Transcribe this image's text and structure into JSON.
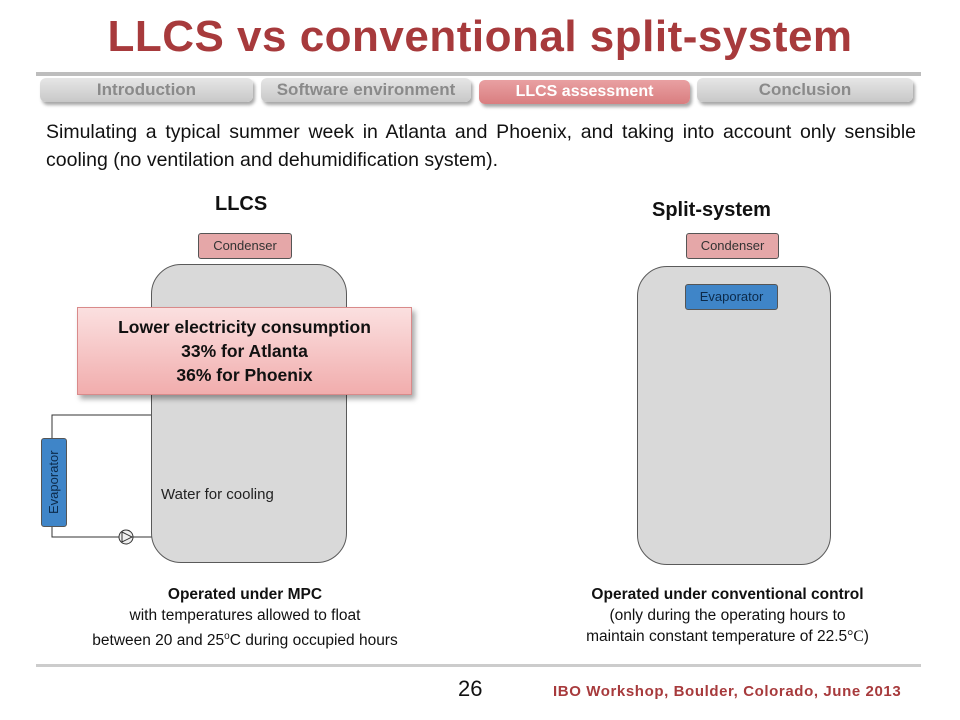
{
  "title": "LLCS vs conventional split-system",
  "tabs": [
    {
      "label": "Introduction"
    },
    {
      "label": "Software environment"
    },
    {
      "label": "LLCS assessment"
    },
    {
      "label": "Conclusion"
    }
  ],
  "intro": "Simulating a typical summer week in Atlanta and Phoenix, and taking into account only sensible cooling (no ventilation and dehumidification system).",
  "llcs": {
    "heading": "LLCS",
    "condenser": "Condenser",
    "evaporator": "Evaporator",
    "water": "Water for cooling",
    "callout": {
      "line1": "Lower electricity consumption",
      "line2": "33% for Atlanta",
      "line3": "36% for Phoenix"
    },
    "caption": {
      "bold": "Operated under MPC",
      "line2": "with temperatures allowed to float",
      "line3_pre": "between 20 and 25",
      "line3_sup": "o",
      "line3_post": "C during occupied hours"
    }
  },
  "split": {
    "heading": "Split-system",
    "condenser": "Condenser",
    "evaporator": "Evaporator",
    "caption": {
      "bold": "Operated under conventional control",
      "line2": "(only during the operating hours to",
      "line3": "maintain constant temperature of 22.5",
      "line3_unit": "°C",
      "line3_close": ")"
    }
  },
  "footer": {
    "page": "26",
    "event": "IBO Workshop, Boulder, Colorado, June 2013"
  },
  "colors": {
    "accent": "#a73a3c",
    "active_tab": "#d97e80",
    "evaporator": "#3f85c8",
    "condenser": "#e5a7a8",
    "tank": "#d9d9d9"
  }
}
